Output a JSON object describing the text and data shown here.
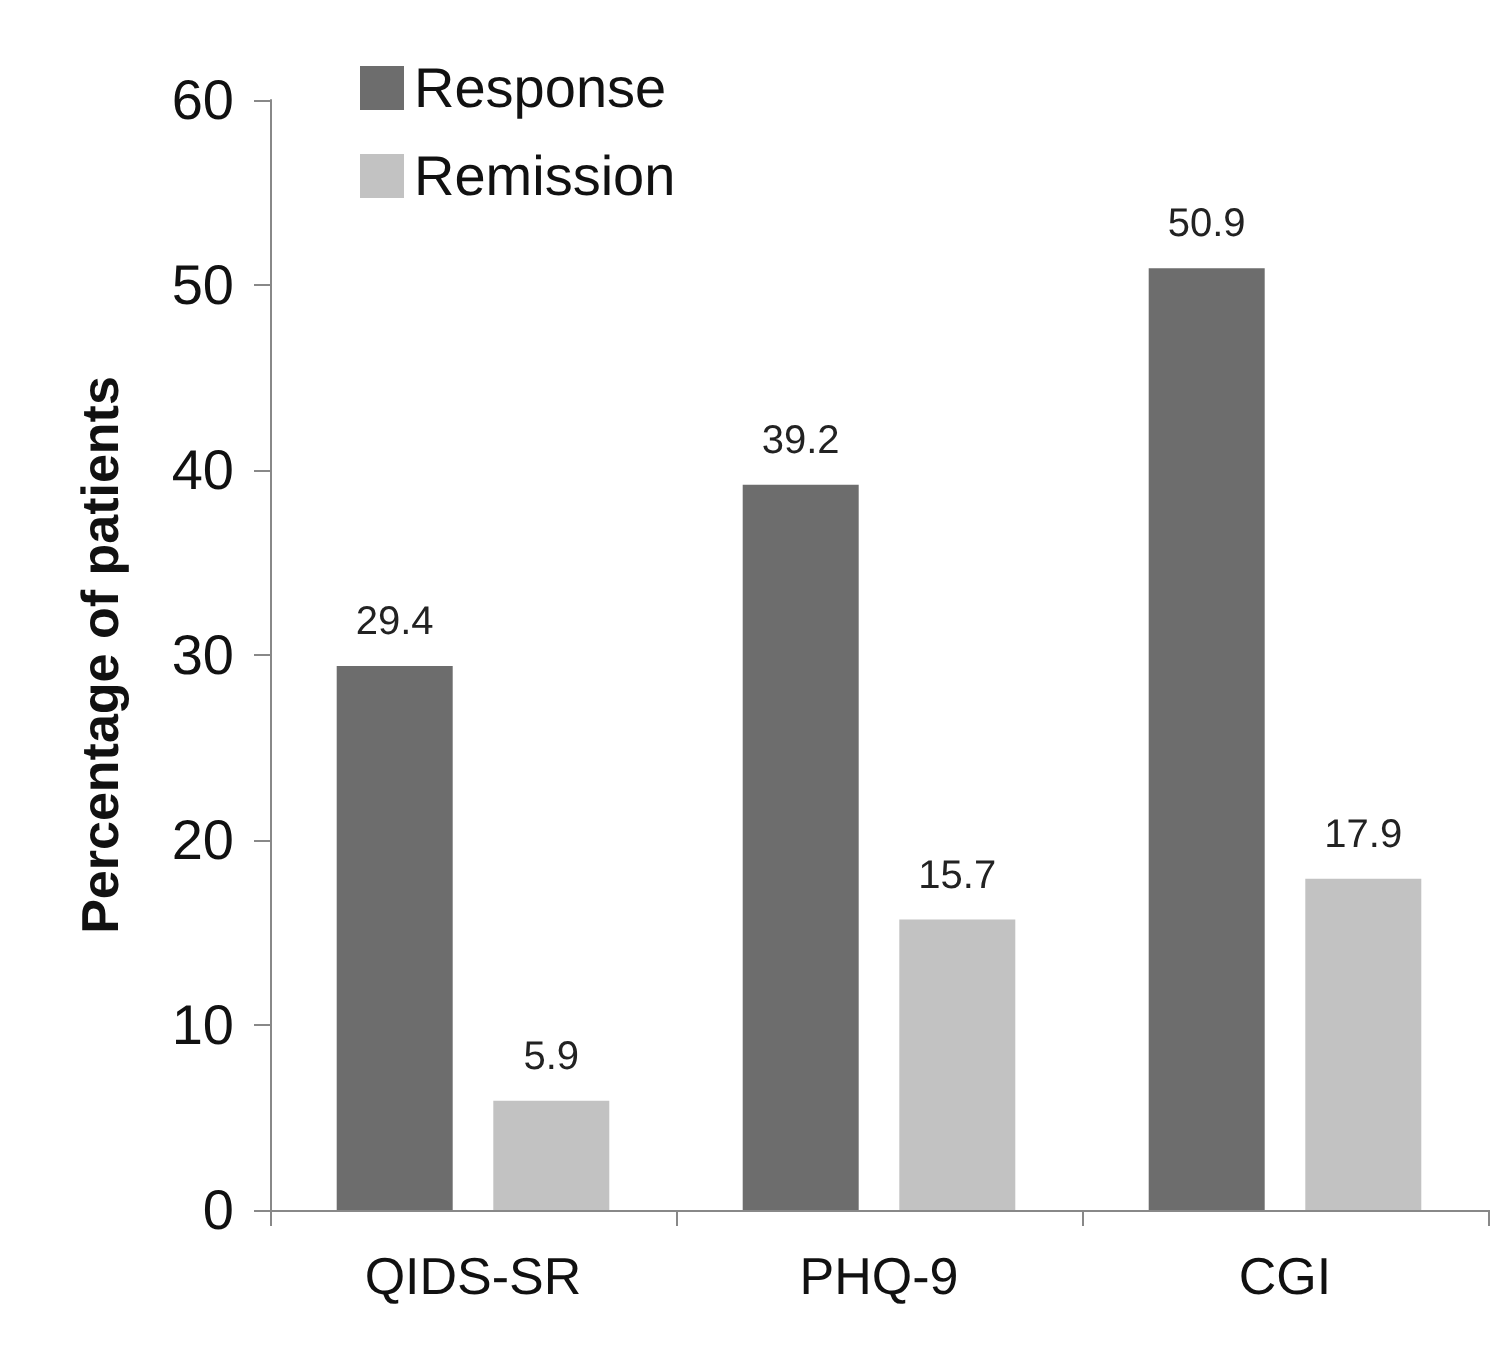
{
  "chart_data": {
    "type": "bar",
    "ylabel": "Percentage of patients",
    "categories": [
      "QIDS-SR",
      "PHQ-9",
      "CGI"
    ],
    "series": [
      {
        "name": "Response",
        "color": "#6d6d6d",
        "values": [
          29.4,
          39.2,
          50.9
        ]
      },
      {
        "name": "Remission",
        "color": "#c2c2c2",
        "values": [
          5.9,
          15.7,
          17.9
        ]
      }
    ],
    "ylim": [
      0,
      60
    ],
    "yticks": [
      0,
      10,
      20,
      30,
      40,
      50,
      60
    ],
    "grid": false,
    "legend": "top left",
    "data_labels": true
  }
}
